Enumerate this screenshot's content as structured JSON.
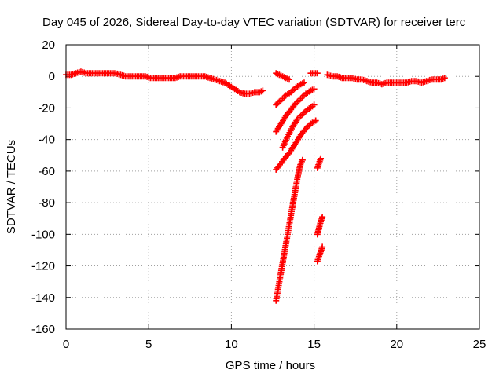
{
  "chart_data": {
    "type": "scatter",
    "title": "Day 045 of 2026, Sidereal Day-to-day VTEC variation (SDTVAR) for receiver terc",
    "xlabel": "GPS time / hours",
    "ylabel": "SDTVAR / TECUs",
    "xlim": [
      0,
      25
    ],
    "ylim": [
      -160,
      20
    ],
    "xticks": [
      0,
      5,
      10,
      15,
      20,
      25
    ],
    "yticks": [
      20,
      0,
      -20,
      -40,
      -60,
      -80,
      -100,
      -120,
      -140,
      -160
    ],
    "grid": true,
    "marker": "+",
    "color": "#ff0000",
    "series": [
      {
        "name": "baseline-early",
        "points": [
          [
            0.0,
            1
          ],
          [
            0.3,
            1
          ],
          [
            0.6,
            2
          ],
          [
            0.9,
            3
          ],
          [
            1.2,
            2
          ],
          [
            1.5,
            2
          ],
          [
            1.8,
            2
          ],
          [
            2.1,
            2
          ],
          [
            2.4,
            2
          ],
          [
            2.7,
            2
          ],
          [
            3.0,
            2
          ],
          [
            3.3,
            1
          ],
          [
            3.6,
            0
          ],
          [
            3.9,
            0
          ],
          [
            4.2,
            0
          ],
          [
            4.5,
            0
          ],
          [
            4.8,
            0
          ],
          [
            5.1,
            -1
          ],
          [
            5.4,
            -1
          ],
          [
            5.7,
            -1
          ],
          [
            6.0,
            -1
          ],
          [
            6.3,
            -1
          ],
          [
            6.6,
            -1
          ],
          [
            6.9,
            0
          ],
          [
            7.2,
            0
          ],
          [
            7.5,
            0
          ],
          [
            7.8,
            0
          ],
          [
            8.1,
            0
          ],
          [
            8.4,
            0
          ],
          [
            8.7,
            -1
          ],
          [
            9.0,
            -2
          ],
          [
            9.3,
            -3
          ],
          [
            9.6,
            -4
          ],
          [
            9.9,
            -6
          ],
          [
            10.2,
            -8
          ],
          [
            10.5,
            -10
          ],
          [
            10.8,
            -11
          ],
          [
            11.1,
            -11
          ],
          [
            11.4,
            -10
          ],
          [
            11.7,
            -10
          ],
          [
            11.9,
            -9
          ]
        ]
      },
      {
        "name": "arc-top-a",
        "points": [
          [
            12.7,
            2
          ],
          [
            12.9,
            1
          ],
          [
            13.1,
            0
          ],
          [
            13.3,
            -1
          ],
          [
            13.5,
            -2
          ]
        ]
      },
      {
        "name": "arc-top-b",
        "points": [
          [
            14.8,
            2
          ],
          [
            15.0,
            2
          ],
          [
            15.2,
            2
          ]
        ]
      },
      {
        "name": "arc-top-c",
        "points": [
          [
            15.8,
            1
          ],
          [
            16.1,
            0
          ],
          [
            16.4,
            0
          ],
          [
            16.7,
            -1
          ],
          [
            17.0,
            -1
          ],
          [
            17.3,
            -1
          ],
          [
            17.6,
            -2
          ],
          [
            17.9,
            -2
          ],
          [
            18.2,
            -3
          ],
          [
            18.5,
            -4
          ],
          [
            18.8,
            -4
          ],
          [
            19.1,
            -5
          ],
          [
            19.4,
            -4
          ],
          [
            19.7,
            -4
          ],
          [
            20.0,
            -4
          ],
          [
            20.3,
            -4
          ],
          [
            20.6,
            -4
          ],
          [
            20.9,
            -3
          ],
          [
            21.2,
            -3
          ],
          [
            21.5,
            -4
          ],
          [
            21.8,
            -3
          ],
          [
            22.1,
            -2
          ],
          [
            22.4,
            -2
          ],
          [
            22.7,
            -2
          ],
          [
            22.9,
            -1
          ]
        ]
      },
      {
        "name": "descent-1",
        "points": [
          [
            12.7,
            -18
          ],
          [
            13.0,
            -15
          ],
          [
            13.3,
            -12
          ],
          [
            13.6,
            -10
          ],
          [
            13.9,
            -7
          ],
          [
            14.2,
            -5
          ],
          [
            14.4,
            -4
          ]
        ]
      },
      {
        "name": "descent-2",
        "points": [
          [
            12.7,
            -35
          ],
          [
            13.0,
            -30
          ],
          [
            13.3,
            -25
          ],
          [
            13.6,
            -21
          ],
          [
            13.9,
            -17
          ],
          [
            14.2,
            -14
          ],
          [
            14.5,
            -11
          ],
          [
            14.8,
            -9
          ],
          [
            15.0,
            -8
          ]
        ]
      },
      {
        "name": "descent-3",
        "points": [
          [
            13.1,
            -45
          ],
          [
            13.4,
            -38
          ],
          [
            13.7,
            -32
          ],
          [
            14.0,
            -27
          ],
          [
            14.3,
            -24
          ],
          [
            14.6,
            -21
          ],
          [
            14.9,
            -19
          ],
          [
            15.0,
            -18
          ]
        ]
      },
      {
        "name": "descent-4",
        "points": [
          [
            12.7,
            -59
          ],
          [
            13.0,
            -55
          ],
          [
            13.3,
            -51
          ],
          [
            13.6,
            -47
          ],
          [
            13.9,
            -42
          ],
          [
            14.2,
            -37
          ],
          [
            14.5,
            -33
          ],
          [
            14.8,
            -30
          ],
          [
            15.1,
            -28
          ]
        ]
      },
      {
        "name": "steep-drop",
        "points": [
          [
            12.7,
            -142
          ],
          [
            12.8,
            -136
          ],
          [
            12.9,
            -130
          ],
          [
            13.0,
            -124
          ],
          [
            13.1,
            -118
          ],
          [
            13.2,
            -112
          ],
          [
            13.3,
            -106
          ],
          [
            13.4,
            -100
          ],
          [
            13.5,
            -94
          ],
          [
            13.6,
            -88
          ],
          [
            13.7,
            -82
          ],
          [
            13.8,
            -76
          ],
          [
            13.9,
            -70
          ],
          [
            14.0,
            -64
          ],
          [
            14.1,
            -59
          ],
          [
            14.2,
            -55
          ],
          [
            14.3,
            -53
          ]
        ]
      },
      {
        "name": "segment-late-1",
        "points": [
          [
            15.2,
            -58
          ],
          [
            15.3,
            -55
          ],
          [
            15.4,
            -52
          ]
        ]
      },
      {
        "name": "segment-late-2",
        "points": [
          [
            15.2,
            -100
          ],
          [
            15.3,
            -96
          ],
          [
            15.4,
            -92
          ],
          [
            15.5,
            -89
          ]
        ]
      },
      {
        "name": "segment-late-3",
        "points": [
          [
            15.2,
            -117
          ],
          [
            15.3,
            -114
          ],
          [
            15.4,
            -111
          ],
          [
            15.5,
            -108
          ]
        ]
      }
    ]
  }
}
